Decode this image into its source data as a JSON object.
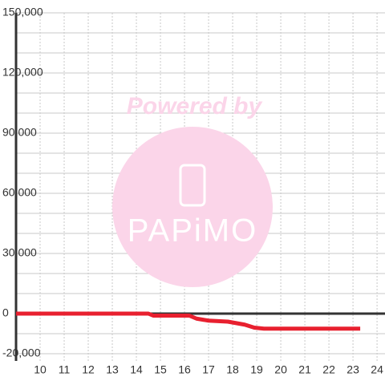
{
  "chart_data": {
    "type": "line",
    "x": [
      9,
      14.5,
      14.7,
      16.2,
      16.5,
      17,
      17.8,
      18.5,
      18.9,
      19.3,
      23.3
    ],
    "series": [
      {
        "color": "#e8202f",
        "values": [
          0,
          0,
          -1000,
          -1000,
          -2500,
          -3500,
          -4000,
          -5500,
          -7000,
          -7500,
          -7500
        ]
      }
    ],
    "xlim": [
      9,
      24.33
    ],
    "xticks": [
      10,
      11,
      12,
      13,
      14,
      15,
      16,
      17,
      18,
      19,
      20,
      21,
      22,
      23,
      24
    ],
    "ylim": [
      -23600,
      150000
    ],
    "yticks": [
      {
        "value": 150000,
        "label": "150,000"
      },
      {
        "value": 120000,
        "label": "120,000"
      },
      {
        "value": 90000,
        "label": "90,000"
      },
      {
        "value": 60000,
        "label": "60,000"
      },
      {
        "value": 30000,
        "label": "30,000"
      },
      0,
      {
        "value": -20000,
        "label": "-20,000"
      }
    ],
    "yminorticks": [
      140000,
      130000,
      110000,
      100000,
      80000,
      70000,
      50000,
      40000,
      20000,
      10000,
      -10000
    ],
    "grid": true,
    "watermark": {
      "text": "Powered by",
      "logo": "PAPiMO"
    }
  }
}
